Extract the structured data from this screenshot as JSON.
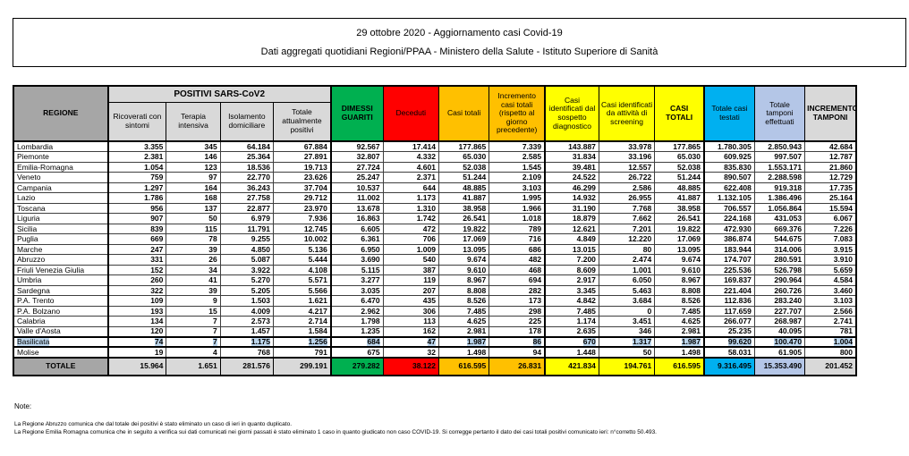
{
  "title": {
    "line1": "29 ottobre 2020 - Aggiornamento casi Covid-19",
    "line2": "Dati aggregati quotidiani Regioni/PPAA - Ministero della Salute - Istituto Superiore di Sanità"
  },
  "table": {
    "group_header": "POSITIVI SARS-CoV2",
    "headers": {
      "regione": "REGIONE",
      "sub": [
        "Ricoverati con sintomi",
        "Terapia intensiva",
        "Isolamento domiciliare",
        "Totale attualmente positivi"
      ],
      "cols": [
        "DIMESSI GUARITI",
        "Deceduti",
        "Casi totali",
        "Incremento casi totali (rispetto al giorno precedente)",
        "Casi identificati dal sospetto diagnostico",
        "Casi identificati da attività di screening",
        "CASI TOTALI",
        "Totale casi testati",
        "Totale tamponi effettuati",
        "INCREMENTO TAMPONI"
      ]
    },
    "highlighted_region": "Basilicata",
    "rows": [
      [
        "Lombardia",
        "3.355",
        "345",
        "64.184",
        "67.884",
        "92.567",
        "17.414",
        "177.865",
        "7.339",
        "143.887",
        "33.978",
        "177.865",
        "1.780.305",
        "2.850.943",
        "42.684"
      ],
      [
        "Piemonte",
        "2.381",
        "146",
        "25.364",
        "27.891",
        "32.807",
        "4.332",
        "65.030",
        "2.585",
        "31.834",
        "33.196",
        "65.030",
        "609.925",
        "997.507",
        "12.787"
      ],
      [
        "Emilia-Romagna",
        "1.054",
        "123",
        "18.536",
        "19.713",
        "27.724",
        "4.601",
        "52.038",
        "1.545",
        "39.481",
        "12.557",
        "52.038",
        "835.830",
        "1.553.171",
        "21.860"
      ],
      [
        "Veneto",
        "759",
        "97",
        "22.770",
        "23.626",
        "25.247",
        "2.371",
        "51.244",
        "2.109",
        "24.522",
        "26.722",
        "51.244",
        "890.507",
        "2.288.598",
        "12.729"
      ],
      [
        "Campania",
        "1.297",
        "164",
        "36.243",
        "37.704",
        "10.537",
        "644",
        "48.885",
        "3.103",
        "46.299",
        "2.586",
        "48.885",
        "622.408",
        "919.318",
        "17.735"
      ],
      [
        "Lazio",
        "1.786",
        "168",
        "27.758",
        "29.712",
        "11.002",
        "1.173",
        "41.887",
        "1.995",
        "14.932",
        "26.955",
        "41.887",
        "1.132.105",
        "1.386.496",
        "25.164"
      ],
      [
        "Toscana",
        "956",
        "137",
        "22.877",
        "23.970",
        "13.678",
        "1.310",
        "38.958",
        "1.966",
        "31.190",
        "7.768",
        "38.958",
        "706.557",
        "1.056.864",
        "15.594"
      ],
      [
        "Liguria",
        "907",
        "50",
        "6.979",
        "7.936",
        "16.863",
        "1.742",
        "26.541",
        "1.018",
        "18.879",
        "7.662",
        "26.541",
        "224.168",
        "431.053",
        "6.067"
      ],
      [
        "Sicilia",
        "839",
        "115",
        "11.791",
        "12.745",
        "6.605",
        "472",
        "19.822",
        "789",
        "12.621",
        "7.201",
        "19.822",
        "472.930",
        "669.376",
        "7.226"
      ],
      [
        "Puglia",
        "669",
        "78",
        "9.255",
        "10.002",
        "6.361",
        "706",
        "17.069",
        "716",
        "4.849",
        "12.220",
        "17.069",
        "386.874",
        "544.675",
        "7.083"
      ],
      [
        "Marche",
        "247",
        "39",
        "4.850",
        "5.136",
        "6.950",
        "1.009",
        "13.095",
        "686",
        "13.015",
        "80",
        "13.095",
        "183.944",
        "314.006",
        "3.915"
      ],
      [
        "Abruzzo",
        "331",
        "26",
        "5.087",
        "5.444",
        "3.690",
        "540",
        "9.674",
        "482",
        "7.200",
        "2.474",
        "9.674",
        "174.707",
        "280.591",
        "3.910"
      ],
      [
        "Friuli Venezia Giulia",
        "152",
        "34",
        "3.922",
        "4.108",
        "5.115",
        "387",
        "9.610",
        "468",
        "8.609",
        "1.001",
        "9.610",
        "225.536",
        "526.798",
        "5.659"
      ],
      [
        "Umbria",
        "260",
        "41",
        "5.270",
        "5.571",
        "3.277",
        "119",
        "8.967",
        "694",
        "2.917",
        "6.050",
        "8.967",
        "169.837",
        "290.964",
        "4.584"
      ],
      [
        "Sardegna",
        "322",
        "39",
        "5.205",
        "5.566",
        "3.035",
        "207",
        "8.808",
        "282",
        "3.345",
        "5.463",
        "8.808",
        "221.404",
        "260.726",
        "3.460"
      ],
      [
        "P.A. Trento",
        "109",
        "9",
        "1.503",
        "1.621",
        "6.470",
        "435",
        "8.526",
        "173",
        "4.842",
        "3.684",
        "8.526",
        "112.836",
        "283.240",
        "3.103"
      ],
      [
        "P.A. Bolzano",
        "193",
        "15",
        "4.009",
        "4.217",
        "2.962",
        "306",
        "7.485",
        "298",
        "7.485",
        "0",
        "7.485",
        "117.659",
        "227.707",
        "2.566"
      ],
      [
        "Calabria",
        "134",
        "7",
        "2.573",
        "2.714",
        "1.798",
        "113",
        "4.625",
        "225",
        "1.174",
        "3.451",
        "4.625",
        "266.077",
        "268.987",
        "2.741"
      ],
      [
        "Valle d'Aosta",
        "120",
        "7",
        "1.457",
        "1.584",
        "1.235",
        "162",
        "2.981",
        "178",
        "2.635",
        "346",
        "2.981",
        "25.235",
        "40.095",
        "781"
      ],
      [
        "Basilicata",
        "74",
        "7",
        "1.175",
        "1.256",
        "684",
        "47",
        "1.987",
        "86",
        "670",
        "1.317",
        "1.987",
        "99.620",
        "100.470",
        "1.004"
      ],
      [
        "Molise",
        "19",
        "4",
        "768",
        "791",
        "675",
        "32",
        "1.498",
        "94",
        "1.448",
        "50",
        "1.498",
        "58.031",
        "61.905",
        "800"
      ]
    ],
    "total": [
      "TOTALE",
      "15.964",
      "1.651",
      "281.576",
      "299.191",
      "279.282",
      "38.122",
      "616.595",
      "26.831",
      "421.834",
      "194.761",
      "616.595",
      "9.316.495",
      "15.353.490",
      "201.452"
    ]
  },
  "notes": {
    "title": "Note:",
    "lines": [
      "La Regione Abruzzo comunica che dal totale dei positivi è stato eliminato un caso di ieri in quanto duplicato.",
      "La Regione Emilia Romagna comunica che in seguito a verifica sui dati comunicati nei giorni passati è stato eliminato 1 caso in quanto giudicato non caso COVID-19. Si corregge pertanto il dato dei casi totali positivi comunicato ieri: n°corretto 50.493."
    ]
  },
  "colors": {
    "dimessi_green": "#00b050",
    "deceduti_red": "#ff0000",
    "casi_totali_orange": "#ffc000",
    "casi_identificati_yellow": "#ffff00",
    "testati_cyan": "#00b0f0",
    "tamponi_periwinkle": "#b4c6e7",
    "regione_header_gray": "#a6a6a6",
    "subheader_gray": "#d9d9d9",
    "selection_highlight_blue": "#bdd7ee"
  }
}
